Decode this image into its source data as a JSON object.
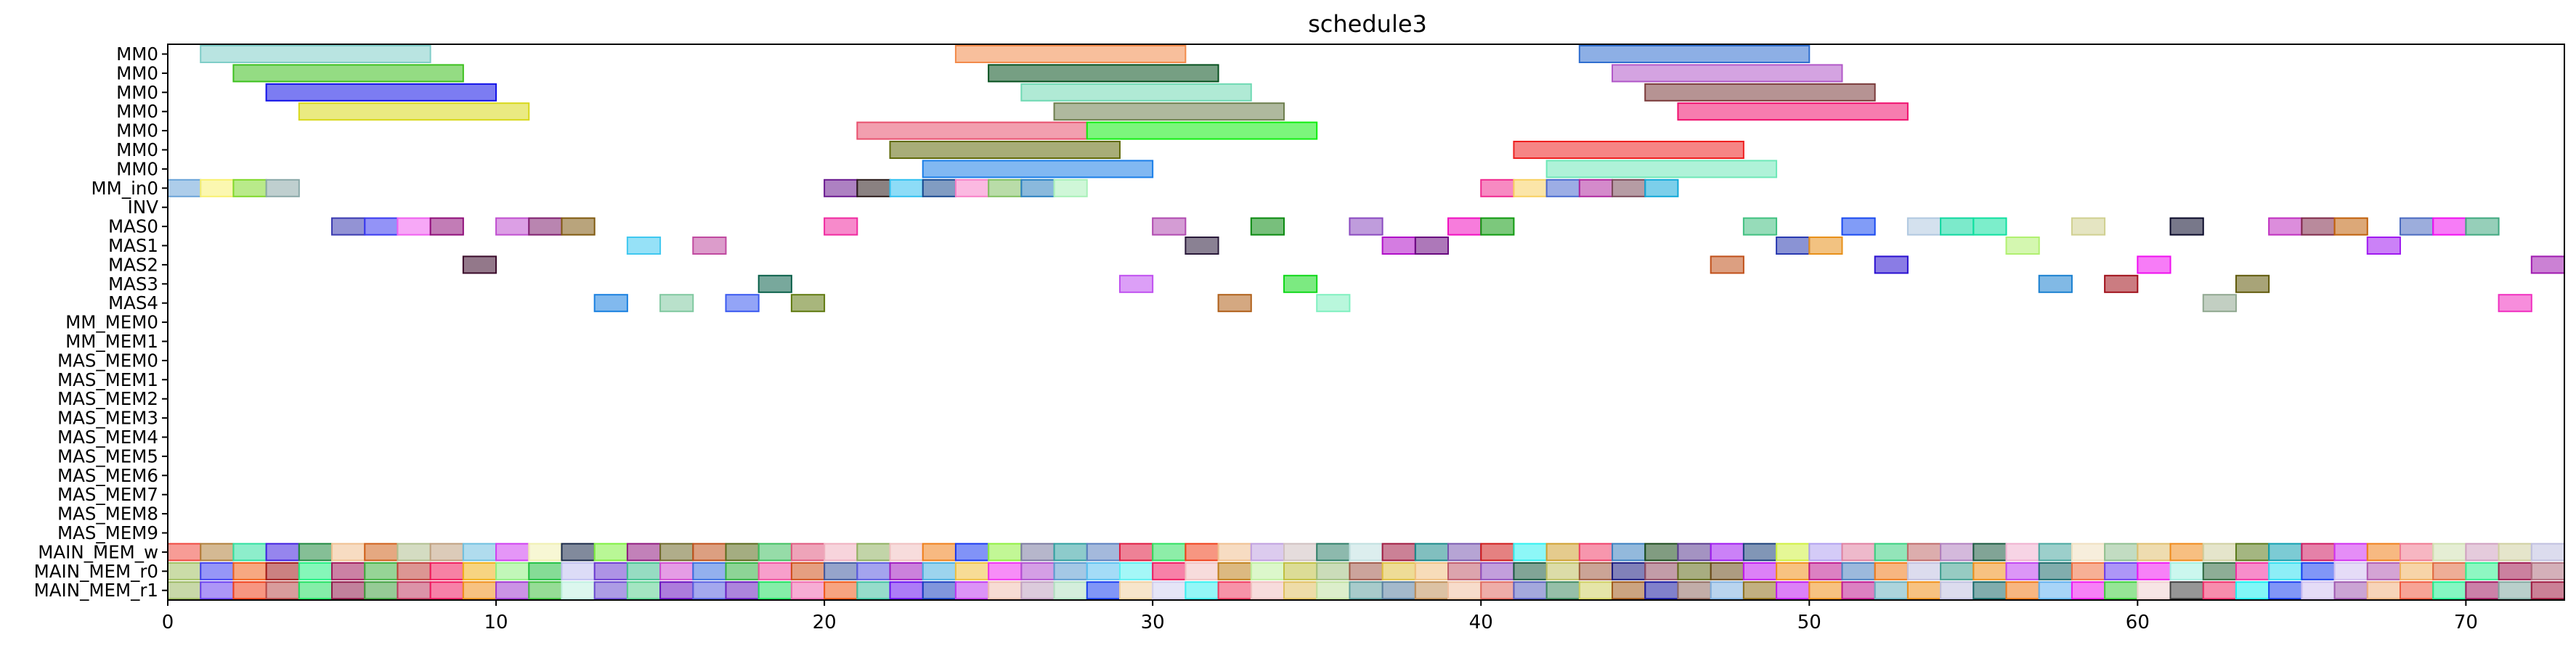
{
  "chart_data": {
    "type": "gantt",
    "title": "schedule3",
    "xlim": [
      0,
      73
    ],
    "x_ticks": [
      0,
      10,
      20,
      30,
      40,
      50,
      60,
      70
    ],
    "rows": [
      "MM0",
      "MM0",
      "MM0",
      "MM0",
      "MM0",
      "MM0",
      "MM0",
      "MM_in0",
      "INV",
      "MAS0",
      "MAS1",
      "MAS2",
      "MAS3",
      "MAS4",
      "MM_MEM0",
      "MM_MEM1",
      "MAS_MEM0",
      "MAS_MEM1",
      "MAS_MEM2",
      "MAS_MEM3",
      "MAS_MEM4",
      "MAS_MEM5",
      "MAS_MEM6",
      "MAS_MEM7",
      "MAS_MEM8",
      "MAS_MEM9",
      "MAIN_MEM_w",
      "MAIN_MEM_r0",
      "MAIN_MEM_r1"
    ],
    "bars": [
      {
        "row": 0,
        "start": 1,
        "end": 8,
        "color": "#7fcdc8"
      },
      {
        "row": 0,
        "start": 24,
        "end": 31,
        "color": "#f28a4a"
      },
      {
        "row": 0,
        "start": 43,
        "end": 50,
        "color": "#2f6ecf"
      },
      {
        "row": 1,
        "start": 2,
        "end": 9,
        "color": "#3cc01e"
      },
      {
        "row": 1,
        "start": 25,
        "end": 32,
        "color": "#06501e"
      },
      {
        "row": 1,
        "start": 44,
        "end": 51,
        "color": "#b158c8"
      },
      {
        "row": 2,
        "start": 3,
        "end": 10,
        "color": "#1010e8"
      },
      {
        "row": 2,
        "start": 26,
        "end": 33,
        "color": "#6fd9b3"
      },
      {
        "row": 2,
        "start": 45,
        "end": 52,
        "color": "#7a3a3a"
      },
      {
        "row": 3,
        "start": 4,
        "end": 11,
        "color": "#d8d81a"
      },
      {
        "row": 3,
        "start": 27,
        "end": 34,
        "color": "#6e7f4e"
      },
      {
        "row": 3,
        "start": 46,
        "end": 53,
        "color": "#f0106e"
      },
      {
        "row": 4,
        "start": 21,
        "end": 28,
        "color": "#e8506e"
      },
      {
        "row": 4,
        "start": 28,
        "end": 35,
        "color": "#10ee10"
      },
      {
        "row": 5,
        "start": 22,
        "end": 29,
        "color": "#606a0a"
      },
      {
        "row": 5,
        "start": 41,
        "end": 48,
        "color": "#ee2020"
      },
      {
        "row": 6,
        "start": 23,
        "end": 30,
        "color": "#1a7ee8"
      },
      {
        "row": 6,
        "start": 42,
        "end": 49,
        "color": "#6ee8b8"
      },
      {
        "row": 7,
        "start": 0,
        "end": 1,
        "color": "#6aa4d8"
      },
      {
        "row": 7,
        "start": 1,
        "end": 2,
        "color": "#f8f070"
      },
      {
        "row": 7,
        "start": 2,
        "end": 3,
        "color": "#80d82a"
      },
      {
        "row": 7,
        "start": 3,
        "end": 4,
        "color": "#8aa8a8"
      },
      {
        "row": 7,
        "start": 20,
        "end": 21,
        "color": "#6a1a90"
      },
      {
        "row": 7,
        "start": 21,
        "end": 22,
        "color": "#2a1a1a"
      },
      {
        "row": 7,
        "start": 22,
        "end": 23,
        "color": "#30c0f0"
      },
      {
        "row": 7,
        "start": 23,
        "end": 24,
        "color": "#1a4a90"
      },
      {
        "row": 7,
        "start": 24,
        "end": 25,
        "color": "#f880c8"
      },
      {
        "row": 7,
        "start": 25,
        "end": 26,
        "color": "#80c060"
      },
      {
        "row": 7,
        "start": 26,
        "end": 27,
        "color": "#2a80c0"
      },
      {
        "row": 7,
        "start": 27,
        "end": 28,
        "color": "#a8f0b8"
      },
      {
        "row": 7,
        "start": 40,
        "end": 41,
        "color": "#f02a90"
      },
      {
        "row": 7,
        "start": 41,
        "end": 42,
        "color": "#f8d060"
      },
      {
        "row": 7,
        "start": 42,
        "end": 43,
        "color": "#4a6ad0"
      },
      {
        "row": 7,
        "start": 43,
        "end": 44,
        "color": "#b02aa0"
      },
      {
        "row": 7,
        "start": 44,
        "end": 45,
        "color": "#7a4a5a"
      },
      {
        "row": 7,
        "start": 45,
        "end": 46,
        "color": "#10a8d8"
      },
      {
        "row": 9,
        "start": 5,
        "end": 6,
        "color": "#3a3ab0"
      },
      {
        "row": 9,
        "start": 6,
        "end": 7,
        "color": "#3a3af0"
      },
      {
        "row": 9,
        "start": 7,
        "end": 8,
        "color": "#f060f0"
      },
      {
        "row": 9,
        "start": 8,
        "end": 9,
        "color": "#90107a"
      },
      {
        "row": 9,
        "start": 10,
        "end": 11,
        "color": "#c050d0"
      },
      {
        "row": 9,
        "start": 11,
        "end": 12,
        "color": "#802070"
      },
      {
        "row": 9,
        "start": 12,
        "end": 13,
        "color": "#805a10"
      },
      {
        "row": 9,
        "start": 20,
        "end": 21,
        "color": "#f02aa0"
      },
      {
        "row": 9,
        "start": 30,
        "end": 31,
        "color": "#b04ab0"
      },
      {
        "row": 9,
        "start": 33,
        "end": 34,
        "color": "#0a8a10"
      },
      {
        "row": 9,
        "start": 36,
        "end": 37,
        "color": "#8a4ac0"
      },
      {
        "row": 9,
        "start": 39,
        "end": 40,
        "color": "#f010c0"
      },
      {
        "row": 9,
        "start": 40,
        "end": 41,
        "color": "#109a10"
      },
      {
        "row": 9,
        "start": 48,
        "end": 49,
        "color": "#40c080"
      },
      {
        "row": 9,
        "start": 51,
        "end": 52,
        "color": "#1a4af0"
      },
      {
        "row": 9,
        "start": 53,
        "end": 54,
        "color": "#b0c8e0"
      },
      {
        "row": 9,
        "start": 54,
        "end": 55,
        "color": "#10d8a0"
      },
      {
        "row": 9,
        "start": 55,
        "end": 56,
        "color": "#10e0a0"
      },
      {
        "row": 9,
        "start": 58,
        "end": 59,
        "color": "#d0d090"
      },
      {
        "row": 9,
        "start": 61,
        "end": 62,
        "color": "#0a0a2a"
      },
      {
        "row": 9,
        "start": 64,
        "end": 65,
        "color": "#c030c0"
      },
      {
        "row": 9,
        "start": 65,
        "end": 66,
        "color": "#802a4a"
      },
      {
        "row": 9,
        "start": 66,
        "end": 67,
        "color": "#c0600a"
      },
      {
        "row": 9,
        "start": 68,
        "end": 69,
        "color": "#4a6ac0"
      },
      {
        "row": 9,
        "start": 69,
        "end": 70,
        "color": "#f010f0"
      },
      {
        "row": 9,
        "start": 70,
        "end": 71,
        "color": "#40a880"
      },
      {
        "row": 10,
        "start": 14,
        "end": 15,
        "color": "#40c8f0"
      },
      {
        "row": 10,
        "start": 16,
        "end": 17,
        "color": "#c04aa0"
      },
      {
        "row": 10,
        "start": 31,
        "end": 32,
        "color": "#2a1a3a"
      },
      {
        "row": 10,
        "start": 37,
        "end": 38,
        "color": "#b010c8"
      },
      {
        "row": 10,
        "start": 38,
        "end": 39,
        "color": "#6a0a80"
      },
      {
        "row": 10,
        "start": 49,
        "end": 50,
        "color": "#2a3ab0"
      },
      {
        "row": 10,
        "start": 50,
        "end": 51,
        "color": "#e8901a"
      },
      {
        "row": 10,
        "start": 56,
        "end": 57,
        "color": "#b0f070"
      },
      {
        "row": 10,
        "start": 67,
        "end": 68,
        "color": "#a01af0"
      },
      {
        "row": 11,
        "start": 9,
        "end": 10,
        "color": "#3a0a2a"
      },
      {
        "row": 11,
        "start": 47,
        "end": 48,
        "color": "#c0501a"
      },
      {
        "row": 11,
        "start": 52,
        "end": 53,
        "color": "#2a10d0"
      },
      {
        "row": 11,
        "start": 60,
        "end": 61,
        "color": "#f010f0"
      },
      {
        "row": 11,
        "start": 72,
        "end": 73,
        "color": "#a01ab0"
      },
      {
        "row": 12,
        "start": 18,
        "end": 19,
        "color": "#0a604a"
      },
      {
        "row": 12,
        "start": 29,
        "end": 30,
        "color": "#c050f0"
      },
      {
        "row": 12,
        "start": 34,
        "end": 35,
        "color": "#10d81a"
      },
      {
        "row": 12,
        "start": 57,
        "end": 58,
        "color": "#1a80d0"
      },
      {
        "row": 12,
        "start": 59,
        "end": 60,
        "color": "#a0101a"
      },
      {
        "row": 12,
        "start": 63,
        "end": 64,
        "color": "#605a0a"
      },
      {
        "row": 13,
        "start": 13,
        "end": 14,
        "color": "#1a80e0"
      },
      {
        "row": 13,
        "start": 15,
        "end": 16,
        "color": "#80c8a0"
      },
      {
        "row": 13,
        "start": 17,
        "end": 18,
        "color": "#3a5af0"
      },
      {
        "row": 13,
        "start": 19,
        "end": 20,
        "color": "#607a10"
      },
      {
        "row": 13,
        "start": 32,
        "end": 33,
        "color": "#b0601a"
      },
      {
        "row": 13,
        "start": 35,
        "end": 36,
        "color": "#80f0c0"
      },
      {
        "row": 13,
        "start": 62,
        "end": 63,
        "color": "#90a890"
      },
      {
        "row": 13,
        "start": 71,
        "end": 72,
        "color": "#f030c0"
      }
    ],
    "memory_rows": [
      {
        "row": 28,
        "colors": [
          "#9ab860",
          "#6a40f0",
          "#f0401a",
          "#b84a4a",
          "#20e060",
          "#901a4a",
          "#40a040",
          "#c03a60",
          "#f01a60",
          "#f0901a",
          "#a03ad0",
          "#40c040",
          "#c0f0e0",
          "#6a4ad0",
          "#5ad090",
          "#6a10c0",
          "#5a60e0",
          "#6a20c0",
          "#20e060",
          "#f06ab0",
          "#f05a1a",
          "#40c0a0",
          "#6a10f0",
          "#1a40c0",
          "#c03af0",
          "#f0c0b0",
          "#c0a0c0",
          "#b0e0c0",
          "#1a40f0",
          "#f0d0a0",
          "#d0d0f0",
          "#3af0f0",
          "#f03a60",
          "#f0c0c0",
          "#e0c060",
          "#c0e0a0",
          "#60a0a0",
          "#5a80a0",
          "#c0905a",
          "#f0c0a0",
          "#e06a60",
          "#5a60c0",
          "#408a60",
          "#d0d060",
          "#a05a1a",
          "#1a1aa0",
          "#906a60",
          "#80b0e0",
          "#90701a",
          "#c01af0",
          "#f0901a",
          "#c01a90",
          "#6ab0c0",
          "#f0901a",
          "#c0c0e0",
          "#1a6a6a",
          "#f07a1a",
          "#60b0f0",
          "#f01af0",
          "#40d040",
          "#f0d0d0",
          "#404040",
          "#f0306a",
          "#1af0f0",
          "#1a40f0",
          "#d0c0f0",
          "#a05ab0",
          "#f0b080",
          "#f05a40",
          "#20f090",
          "#a01a60",
          "#80a8a0",
          "#a01a40"
        ]
      },
      {
        "row": 27,
        "colors": [
          "#a0c060",
          "#4040f0",
          "#f0601a",
          "#a01a1a",
          "#20f080",
          "#a01a5a",
          "#40b040",
          "#c0403a",
          "#f01a5a",
          "#f0b01a",
          "#90f080",
          "#20c040",
          "#c0c0f0",
          "#6a3ad0",
          "#40c090",
          "#d04ad0",
          "#3a70e0",
          "#30b040",
          "#f050a0",
          "#d0501a",
          "#405aa0",
          "#5a5ae0",
          "#a01ac0",
          "#4ab0e0",
          "#f0c040",
          "#f030f0",
          "#b050d0",
          "#5a9ad0",
          "#5ac0f0",
          "#5af0f0",
          "#f01a60",
          "#f0c0c0",
          "#c0801a",
          "#c0f0a0",
          "#c0c040",
          "#a0c080",
          "#a05a4a",
          "#e0c040",
          "#f0c080",
          "#c05a6a",
          "#9050c0",
          "#1a5a40",
          "#c0c060",
          "#a05a40",
          "#1a1a80",
          "#904a60",
          "#606a1a",
          "#6a4a1a",
          "#c01af0",
          "#f0901a",
          "#c01a90",
          "#4a80c0",
          "#f07a1a",
          "#c0c0e0",
          "#40a090",
          "#f0901a",
          "#c040f0",
          "#1a6a6a",
          "#f07040",
          "#6a40f0",
          "#f01af0",
          "#a0f0e0",
          "#306a40",
          "#f030a0",
          "#30e0f0",
          "#1a40f0",
          "#d0c0f0",
          "#b05ab0",
          "#f0b060",
          "#e06a40",
          "#30f090",
          "#a01a50",
          "#b07080"
        ]
      },
      {
        "row": 26,
        "colors": [
          "#f04a40",
          "#b0803a",
          "#30e0a0",
          "#4020e0",
          "#208a40",
          "#f0c090",
          "#d0601a",
          "#b0c090",
          "#c0a080",
          "#70c0e0",
          "#d040f0",
          "#f0f0b0",
          "#1a2a4a",
          "#80f040",
          "#901a80",
          "#706a2a",
          "#c0501a",
          "#5a6a1a",
          "#40c060",
          "#e05a80",
          "#f0b0c0",
          "#90b060",
          "#f0c0c0",
          "#f0801a",
          "#1a3af0",
          "#90f040",
          "#7a7aa0",
          "#30a0a0",
          "#5a80c0",
          "#e01a40",
          "#30e060",
          "#f0401a",
          "#f0c090",
          "#c0a0e0",
          "#d0c0c0",
          "#30806a",
          "#c0e0e0",
          "#a01a40",
          "#1a8a8a",
          "#7a5ab0",
          "#d01a1a",
          "#30f0f0",
          "#d0a030",
          "#f0406a",
          "#3a80c0",
          "#1a4a1a",
          "#5a3a90",
          "#a01af0",
          "#1a407a",
          "#d0f040",
          "#b0a0f0",
          "#e080a0",
          "#3ad080",
          "#c06a6a",
          "#b080c0",
          "#1a5a40",
          "#f0b0d0",
          "#4aa8a0",
          "#f0e0c0",
          "#90c090",
          "#e0c070",
          "#f08a1a",
          "#d0d0a0",
          "#5a7a1a",
          "#10a0b0",
          "#d01a60",
          "#d030f0",
          "#f0801a",
          "#f07a90",
          "#d0e0b0",
          "#d0a0c0",
          "#d0d0a0",
          "#c0c0e0"
        ]
      }
    ]
  }
}
